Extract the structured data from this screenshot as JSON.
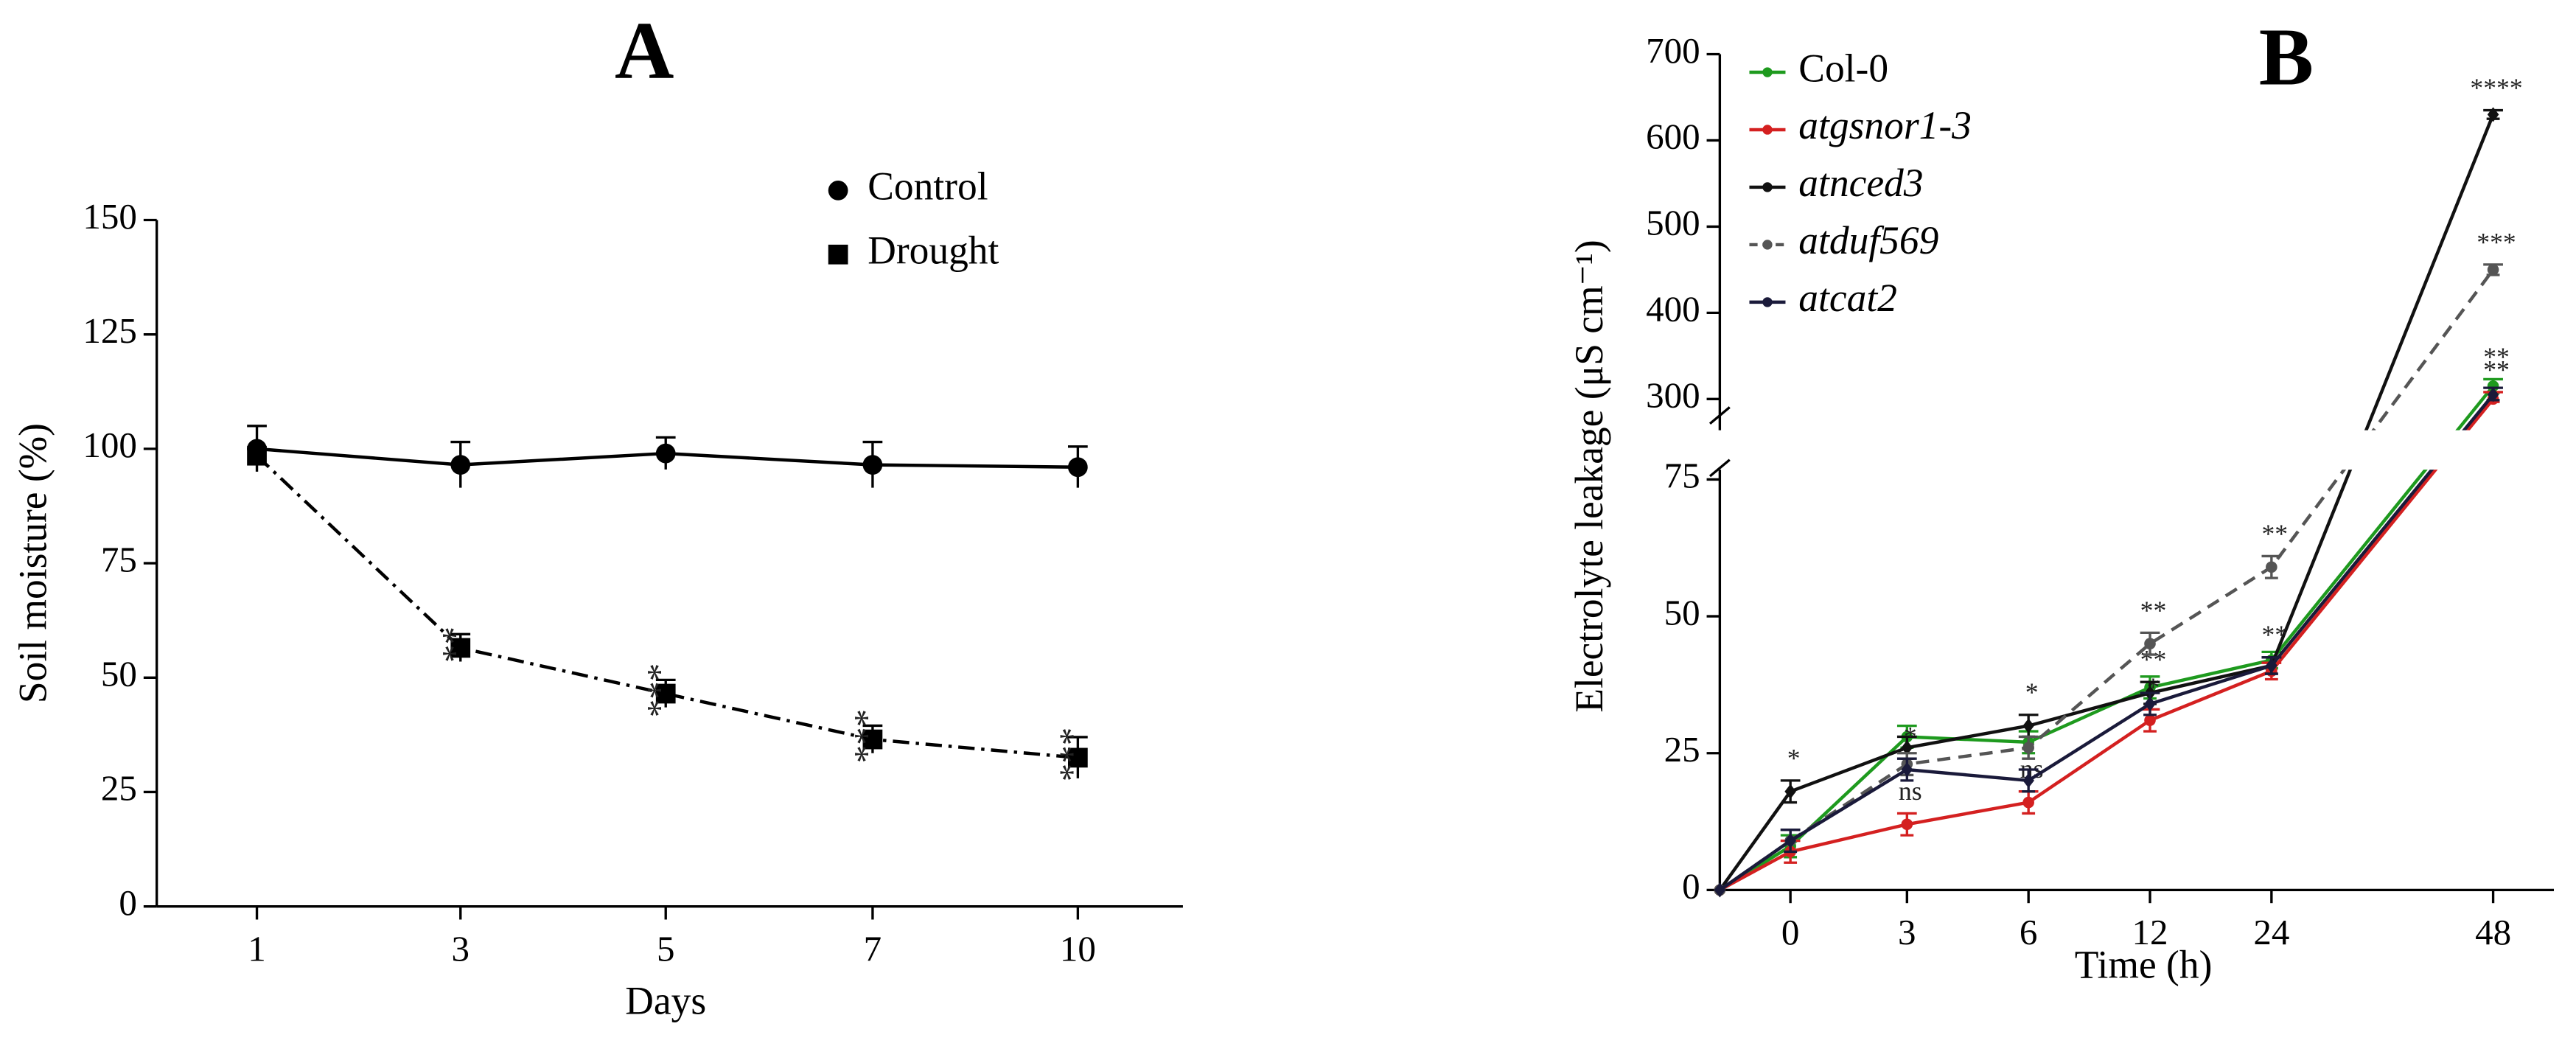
{
  "chart_data": [
    {
      "type": "line",
      "title": "A",
      "x_label": "Days",
      "y_label": "Soil moisture (%)",
      "categories": [
        "1",
        "3",
        "5",
        "7",
        "10"
      ],
      "ylim": [
        0,
        150
      ],
      "yticks": [
        0,
        25,
        50,
        75,
        100,
        125,
        150
      ],
      "series": [
        {
          "name": "Control",
          "color": "#000000",
          "marker": "circle",
          "linestyle": "solid",
          "values": [
            100,
            96.5,
            99,
            96.5,
            96
          ],
          "errors": [
            5,
            5,
            3.5,
            5,
            4.5
          ],
          "annotations": [
            null,
            null,
            null,
            null,
            null
          ]
        },
        {
          "name": "Drought",
          "color": "#000000",
          "marker": "square",
          "linestyle": "dashdot",
          "values": [
            98.5,
            56.5,
            46.5,
            36.5,
            32.5
          ],
          "errors": [
            1.5,
            3,
            3,
            3,
            4.5
          ],
          "annotations": [
            null,
            "**",
            "***",
            "***",
            "***"
          ]
        }
      ]
    },
    {
      "type": "line",
      "title": "B",
      "x_label": "Time (h)",
      "y_label": "Electrolyte leakage (μS cm⁻¹)",
      "categories": [
        null,
        "0",
        "3",
        "6",
        "12",
        "24",
        "48"
      ],
      "ylim": [
        0,
        700
      ],
      "ybreak": [
        75,
        300
      ],
      "yticks": [
        0,
        25,
        50,
        75,
        300,
        400,
        500,
        600,
        700
      ],
      "series": [
        {
          "name": "Col-0",
          "color": "#1e9a1e",
          "marker": "circle",
          "linestyle": "solid",
          "italic": false,
          "values": [
            0,
            8,
            28,
            27,
            37,
            42,
            315
          ],
          "errors": [
            0,
            2,
            2,
            2,
            2,
            1.5,
            8
          ],
          "annotations": [
            null,
            null,
            null,
            null,
            null,
            null,
            "**"
          ]
        },
        {
          "name": "atgsnor1-3",
          "color": "#d42020",
          "marker": "circle",
          "linestyle": "solid",
          "italic": true,
          "values": [
            0,
            7,
            12,
            16,
            31,
            40,
            300
          ],
          "errors": [
            0,
            2,
            2,
            2,
            2,
            1.5,
            8
          ],
          "annotations": [
            null,
            null,
            "ns",
            "ns",
            "*",
            null,
            "**"
          ]
        },
        {
          "name": "atnced3",
          "color": "#111111",
          "marker": "diamond",
          "linestyle": "solid",
          "italic": true,
          "values": [
            0,
            18,
            26,
            30,
            36,
            41,
            630
          ],
          "errors": [
            0,
            2,
            2,
            2,
            2,
            1.5,
            5
          ],
          "annotations": [
            null,
            "*",
            null,
            "*",
            "**",
            "**",
            "****"
          ]
        },
        {
          "name": "atduf569",
          "color": "#555555",
          "marker": "circle",
          "linestyle": "dashed",
          "italic": true,
          "values": [
            0,
            9,
            23,
            26,
            45,
            59,
            450
          ],
          "errors": [
            0,
            2,
            2,
            2,
            2,
            2,
            6
          ],
          "annotations": [
            null,
            null,
            null,
            null,
            "**",
            "**",
            "***"
          ]
        },
        {
          "name": "atcat2",
          "color": "#1a1a3a",
          "marker": "diamond",
          "linestyle": "solid",
          "italic": true,
          "values": [
            0,
            9,
            22,
            20,
            34,
            41,
            305
          ],
          "errors": [
            0,
            2,
            2,
            2,
            2,
            1.5,
            8
          ],
          "annotations": [
            null,
            null,
            "*",
            null,
            null,
            null,
            null
          ]
        }
      ]
    }
  ]
}
